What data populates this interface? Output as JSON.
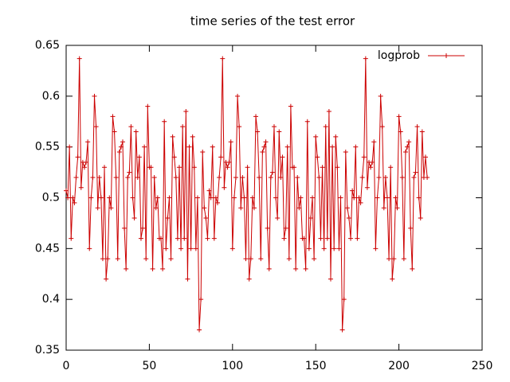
{
  "chart_data": {
    "type": "line",
    "title": "time series of the test error",
    "series": [
      {
        "name": "logprob",
        "color": "#cc0000",
        "values": [
          0.507,
          0.5,
          0.55,
          0.46,
          0.5,
          0.495,
          0.52,
          0.54,
          0.637,
          0.51,
          0.535,
          0.53,
          0.535,
          0.555,
          0.45,
          0.5,
          0.52,
          0.6,
          0.57,
          0.49,
          0.52,
          0.5,
          0.44,
          0.53,
          0.42,
          0.44,
          0.5,
          0.49,
          0.58,
          0.565,
          0.52,
          0.44,
          0.545,
          0.55,
          0.555,
          0.47,
          0.43,
          0.52,
          0.525,
          0.57,
          0.5,
          0.48,
          0.565,
          0.52,
          0.54,
          0.46,
          0.47,
          0.55,
          0.44,
          0.59,
          0.53,
          0.53,
          0.43,
          0.52,
          0.49,
          0.5,
          0.46,
          0.46,
          0.43,
          0.575,
          0.45,
          0.48,
          0.5,
          0.44,
          0.56,
          0.54,
          0.52,
          0.46,
          0.53,
          0.45,
          0.57,
          0.46,
          0.585,
          0.42,
          0.55,
          0.45,
          0.56,
          0.53,
          0.45,
          0.5,
          0.37,
          0.4,
          0.545,
          0.49,
          0.48,
          0.46,
          0.507,
          0.5,
          0.55,
          0.46,
          0.5,
          0.495,
          0.52,
          0.54,
          0.637,
          0.51,
          0.535,
          0.53,
          0.535,
          0.555,
          0.45,
          0.5,
          0.52,
          0.6,
          0.57,
          0.49,
          0.52,
          0.5,
          0.44,
          0.53,
          0.42,
          0.44,
          0.5,
          0.49,
          0.58,
          0.565,
          0.52,
          0.44,
          0.545,
          0.55,
          0.555,
          0.47,
          0.43,
          0.52,
          0.525,
          0.57,
          0.5,
          0.48,
          0.565,
          0.52,
          0.54,
          0.46,
          0.47,
          0.55,
          0.44,
          0.59,
          0.53,
          0.53,
          0.43,
          0.52,
          0.49,
          0.5,
          0.46,
          0.46,
          0.43,
          0.575,
          0.45,
          0.48,
          0.5,
          0.44,
          0.56,
          0.54,
          0.52,
          0.46,
          0.53,
          0.45,
          0.57,
          0.46,
          0.585,
          0.42,
          0.55,
          0.45,
          0.56,
          0.53,
          0.45,
          0.5,
          0.37,
          0.4,
          0.545,
          0.49,
          0.48,
          0.46,
          0.507,
          0.5,
          0.55,
          0.46,
          0.5,
          0.495,
          0.52,
          0.54,
          0.637,
          0.51,
          0.535,
          0.53,
          0.535,
          0.555,
          0.45,
          0.5,
          0.52,
          0.6,
          0.57,
          0.49,
          0.52,
          0.5,
          0.44,
          0.53,
          0.42,
          0.44,
          0.5,
          0.49,
          0.58,
          0.565,
          0.52,
          0.44,
          0.545,
          0.55,
          0.555,
          0.47,
          0.43,
          0.52,
          0.525,
          0.57,
          0.5,
          0.48,
          0.565,
          0.52,
          0.54,
          0.52
        ]
      }
    ],
    "xlim": [
      0,
      250
    ],
    "xticks": [
      0,
      50,
      100,
      150,
      200,
      250
    ],
    "ylim": [
      0.35,
      0.65
    ],
    "yticks": [
      0.35,
      0.4,
      0.45,
      0.5,
      0.55,
      0.6,
      0.65
    ],
    "legend": "top-right"
  }
}
